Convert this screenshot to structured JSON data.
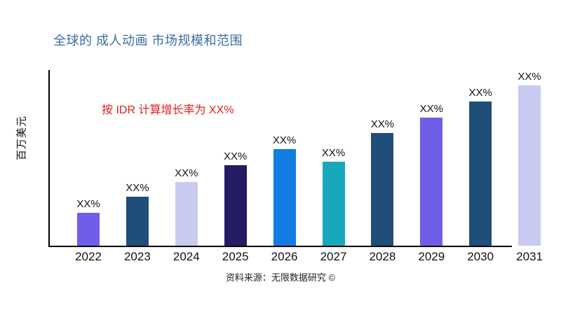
{
  "page": {
    "background": "#ffffff"
  },
  "chart_data": {
    "type": "bar",
    "title": "全球的 成人动画 市场规模和范围",
    "title_color": "#3A6C9E",
    "ylabel": "百万美元",
    "annotation": "按 IDR 计算增长率为 XX%",
    "annotation_color": "#E01F1F",
    "source": "资料来源：无限数据研究 ©",
    "categories": [
      "2022",
      "2023",
      "2024",
      "2025",
      "2026",
      "2027",
      "2028",
      "2029",
      "2030",
      "2031"
    ],
    "bar_labels": [
      "XX%",
      "XX%",
      "XX%",
      "XX%",
      "XX%",
      "XX%",
      "XX%",
      "XX%",
      "XX%",
      "XX%"
    ],
    "values_relative": [
      47,
      70,
      91,
      115,
      138,
      120,
      161,
      183,
      206,
      229
    ],
    "bar_colors": [
      "#6F5FE8",
      "#1F4E79",
      "#C8CAEF",
      "#231C63",
      "#117CE2",
      "#18A8BD",
      "#1F4E79",
      "#6F5FE8",
      "#1F4E79",
      "#C8CAEF"
    ],
    "axis_color": "#000000",
    "xlabel": "",
    "ylim": null,
    "grid": false,
    "legend": null,
    "value_axis_labels_visible": false
  }
}
